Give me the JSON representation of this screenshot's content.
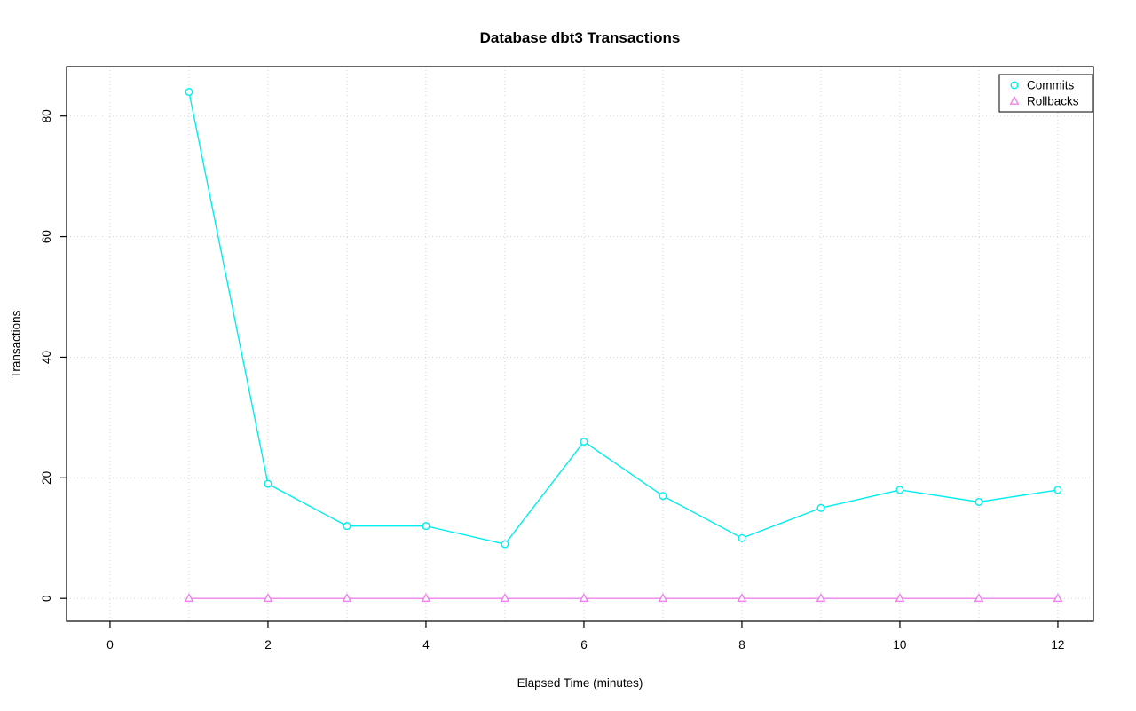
{
  "chart_data": {
    "type": "line",
    "title": "Database dbt3 Transactions",
    "xlabel": "Elapsed Time (minutes)",
    "ylabel": "Transactions",
    "x": [
      1,
      2,
      3,
      4,
      5,
      6,
      7,
      8,
      9,
      10,
      11,
      12
    ],
    "series": [
      {
        "name": "Commits",
        "color": "#00EEEE",
        "marker": "circle",
        "values": [
          84,
          19,
          12,
          12,
          9,
          26,
          17,
          10,
          15,
          18,
          16,
          18
        ]
      },
      {
        "name": "Rollbacks",
        "color": "#EE82EE",
        "marker": "triangle",
        "values": [
          0,
          0,
          0,
          0,
          0,
          0,
          0,
          0,
          0,
          0,
          0,
          0
        ]
      }
    ],
    "xticks": [
      0,
      2,
      4,
      6,
      8,
      10,
      12
    ],
    "yticks": [
      0,
      20,
      40,
      60,
      80
    ],
    "xlim": [
      -0.55,
      12.45
    ],
    "ylim": [
      -3.8,
      88.2
    ],
    "grid": {
      "vertical_step": 1,
      "vertical_range": [
        0,
        12
      ],
      "horizontal_step": 20,
      "horizontal_range": [
        0,
        80
      ],
      "style": "dotted",
      "color": "#d3d3d3"
    },
    "legend": {
      "position": "top-right",
      "entries": [
        "Commits",
        "Rollbacks"
      ]
    },
    "axis_color": "#000000",
    "background": "#ffffff"
  }
}
